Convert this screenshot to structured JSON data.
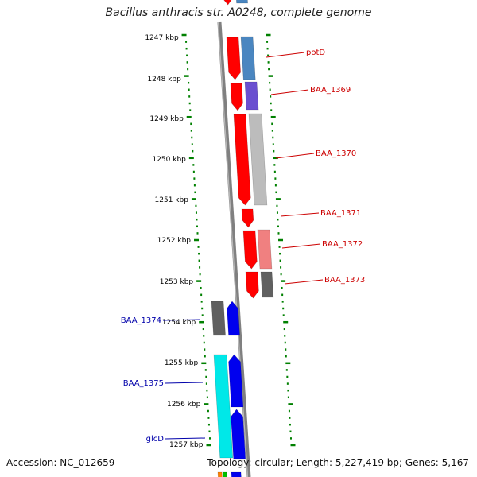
{
  "title": "Bacillus anthracis str. A0248, complete genome",
  "footer": {
    "accession": "Accession: NC_012659",
    "summary": "Topology: circular; Length: 5,227,419 bp; Genes: 5,167"
  },
  "colors": {
    "backbone": "#808080",
    "tick": "#008000",
    "scale_text": "#000000",
    "label_right": "#cc0000",
    "label_left": "#0000aa"
  },
  "scale_labels": [
    "1247 kbp",
    "1248 kbp",
    "1249 kbp",
    "1250 kbp",
    "1251 kbp",
    "1252 kbp",
    "1253 kbp",
    "1254 kbp",
    "1255 kbp",
    "1256 kbp",
    "1257 kbp"
  ],
  "gene_labels": [
    {
      "text": "potD",
      "side": "right"
    },
    {
      "text": "BAA_1369",
      "side": "right"
    },
    {
      "text": "BAA_1370",
      "side": "right"
    },
    {
      "text": "BAA_1371",
      "side": "right"
    },
    {
      "text": "BAA_1372",
      "side": "right"
    },
    {
      "text": "BAA_1373",
      "side": "right"
    },
    {
      "text": "BAA_1374",
      "side": "left"
    },
    {
      "text": "BAA_1375",
      "side": "left"
    },
    {
      "text": "glcD",
      "side": "left"
    }
  ]
}
